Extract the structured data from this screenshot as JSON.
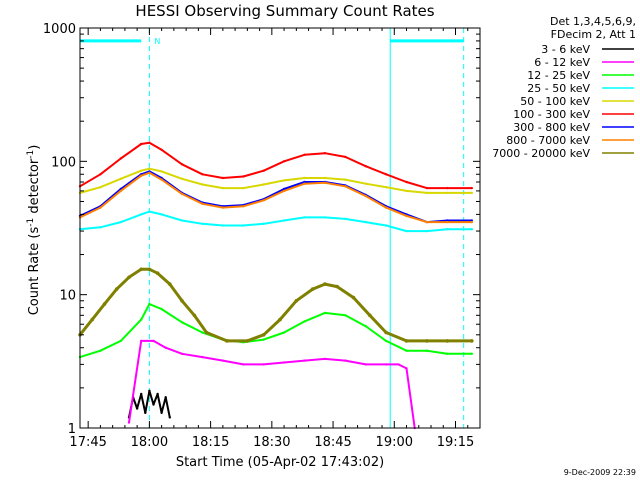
{
  "chart_data": {
    "type": "line",
    "title": "HESSI Observing Summary Count Rates",
    "xlabel": "Start Time (05-Apr-02 17:43:02)",
    "ylabel_main": "Count Rate (s",
    "ylabel_sup1": "-1",
    "ylabel_mid": " detector",
    "ylabel_sup2": "-1",
    "ylabel_end": ")",
    "y_scale": "log",
    "ylim": [
      1,
      1000
    ],
    "xlim_minutes_after_1743": [
      0,
      98
    ],
    "x_ticks": [
      {
        "label": "17:45",
        "t": 2
      },
      {
        "label": "18:00",
        "t": 17
      },
      {
        "label": "18:15",
        "t": 32
      },
      {
        "label": "18:30",
        "t": 47
      },
      {
        "label": "18:45",
        "t": 62
      },
      {
        "label": "19:00",
        "t": 77
      },
      {
        "label": "19:15",
        "t": 92
      }
    ],
    "y_ticks": [
      {
        "label": "1",
        "v": 1
      },
      {
        "label": "10",
        "v": 10
      },
      {
        "label": "100",
        "v": 100
      },
      {
        "label": "1000",
        "v": 1000
      }
    ],
    "legend_header": [
      "Det 1,3,4,5,6,9,",
      "FDecim 2, Att 1"
    ],
    "legend_position": "right",
    "series": [
      {
        "name": "3 - 6 keV",
        "color": "#000000",
        "x": [
          12,
          13,
          14,
          15,
          16,
          17,
          18,
          19,
          20,
          21,
          22
        ],
        "y": [
          1.2,
          1.7,
          1.4,
          1.8,
          1.3,
          1.9,
          1.5,
          1.8,
          1.3,
          1.7,
          1.2
        ]
      },
      {
        "name": "6 - 12 keV",
        "color": "#ff00ff",
        "x": [
          12,
          15,
          18,
          21,
          25,
          30,
          35,
          40,
          45,
          50,
          55,
          60,
          65,
          70,
          75,
          78,
          80,
          82
        ],
        "y": [
          1.1,
          4.5,
          4.5,
          4.0,
          3.6,
          3.4,
          3.2,
          3.0,
          3.0,
          3.1,
          3.2,
          3.3,
          3.2,
          3.0,
          3.0,
          3.0,
          2.8,
          1.0
        ]
      },
      {
        "name": "12 - 25 keV",
        "color": "#00ff00",
        "x": [
          0,
          5,
          10,
          15,
          17,
          20,
          25,
          30,
          35,
          40,
          45,
          50,
          55,
          60,
          65,
          70,
          75,
          80,
          85,
          90,
          96
        ],
        "y": [
          3.4,
          3.8,
          4.5,
          6.5,
          8.5,
          7.8,
          6.2,
          5.2,
          4.6,
          4.4,
          4.6,
          5.2,
          6.3,
          7.3,
          7.0,
          5.8,
          4.5,
          3.8,
          3.8,
          3.6,
          3.6
        ]
      },
      {
        "name": "25 - 50 keV",
        "color": "#00ffff",
        "x": [
          0,
          5,
          10,
          15,
          17,
          20,
          25,
          30,
          35,
          40,
          45,
          50,
          55,
          60,
          65,
          70,
          75,
          80,
          85,
          90,
          96
        ],
        "y": [
          31,
          32,
          35,
          40,
          42,
          40,
          36,
          34,
          33,
          33,
          34,
          36,
          38,
          38,
          37,
          35,
          33,
          30,
          30,
          31,
          31
        ]
      },
      {
        "name": "50 - 100 keV",
        "color": "#d8d800",
        "x": [
          0,
          5,
          10,
          15,
          17,
          20,
          25,
          30,
          35,
          40,
          45,
          50,
          55,
          60,
          65,
          70,
          75,
          80,
          85,
          90,
          96
        ],
        "y": [
          58,
          64,
          74,
          85,
          88,
          84,
          74,
          67,
          63,
          63,
          67,
          72,
          75,
          75,
          73,
          68,
          64,
          60,
          58,
          58,
          58
        ]
      },
      {
        "name": "100 - 300 keV",
        "color": "#ff0000",
        "x": [
          0,
          5,
          10,
          15,
          17,
          20,
          25,
          30,
          35,
          40,
          45,
          50,
          55,
          60,
          65,
          70,
          75,
          80,
          85,
          90,
          96
        ],
        "y": [
          65,
          80,
          105,
          135,
          138,
          122,
          95,
          80,
          75,
          77,
          85,
          100,
          112,
          115,
          108,
          92,
          80,
          70,
          63,
          63,
          63
        ]
      },
      {
        "name": "300 - 800 keV",
        "color": "#0000ff",
        "x": [
          0,
          5,
          10,
          15,
          17,
          20,
          25,
          30,
          35,
          40,
          45,
          50,
          55,
          60,
          65,
          70,
          75,
          80,
          85,
          90,
          96
        ],
        "y": [
          39,
          46,
          62,
          80,
          84,
          75,
          58,
          49,
          46,
          47,
          52,
          62,
          70,
          70,
          66,
          56,
          46,
          40,
          35,
          36,
          36
        ]
      },
      {
        "name": "800 - 7000 keV",
        "color": "#ff8000",
        "x": [
          0,
          5,
          10,
          15,
          17,
          20,
          25,
          30,
          35,
          40,
          45,
          50,
          55,
          60,
          65,
          70,
          75,
          80,
          85,
          90,
          96
        ],
        "y": [
          38,
          45,
          60,
          78,
          82,
          73,
          57,
          48,
          45,
          46,
          51,
          60,
          68,
          69,
          65,
          55,
          45,
          39,
          35,
          35,
          35
        ]
      },
      {
        "name": "7000 - 20000 keV",
        "color": "#808000",
        "x": [
          0,
          3,
          6,
          9,
          12,
          15,
          17,
          19,
          22,
          25,
          28,
          31,
          36,
          41,
          45,
          49,
          53,
          57,
          60,
          63,
          67,
          71,
          75,
          80,
          85,
          90,
          96
        ],
        "y": [
          5.0,
          6.5,
          8.5,
          11,
          13.5,
          15.5,
          15.5,
          14.5,
          12,
          9,
          7,
          5.2,
          4.5,
          4.5,
          5.0,
          6.5,
          9,
          11,
          12,
          11.5,
          9.5,
          7,
          5.2,
          4.5,
          4.5,
          4.5,
          4.5
        ]
      }
    ],
    "annotations": {
      "attenuator_level": 800,
      "attenuator_bars_x": [
        [
          0,
          15
        ],
        [
          76,
          94
        ]
      ],
      "marker_label": "N",
      "solid_lines_x": [
        0,
        76
      ],
      "dashed_lines_x": [
        17,
        94
      ]
    },
    "timestamp": "9-Dec-2009 22:39"
  }
}
